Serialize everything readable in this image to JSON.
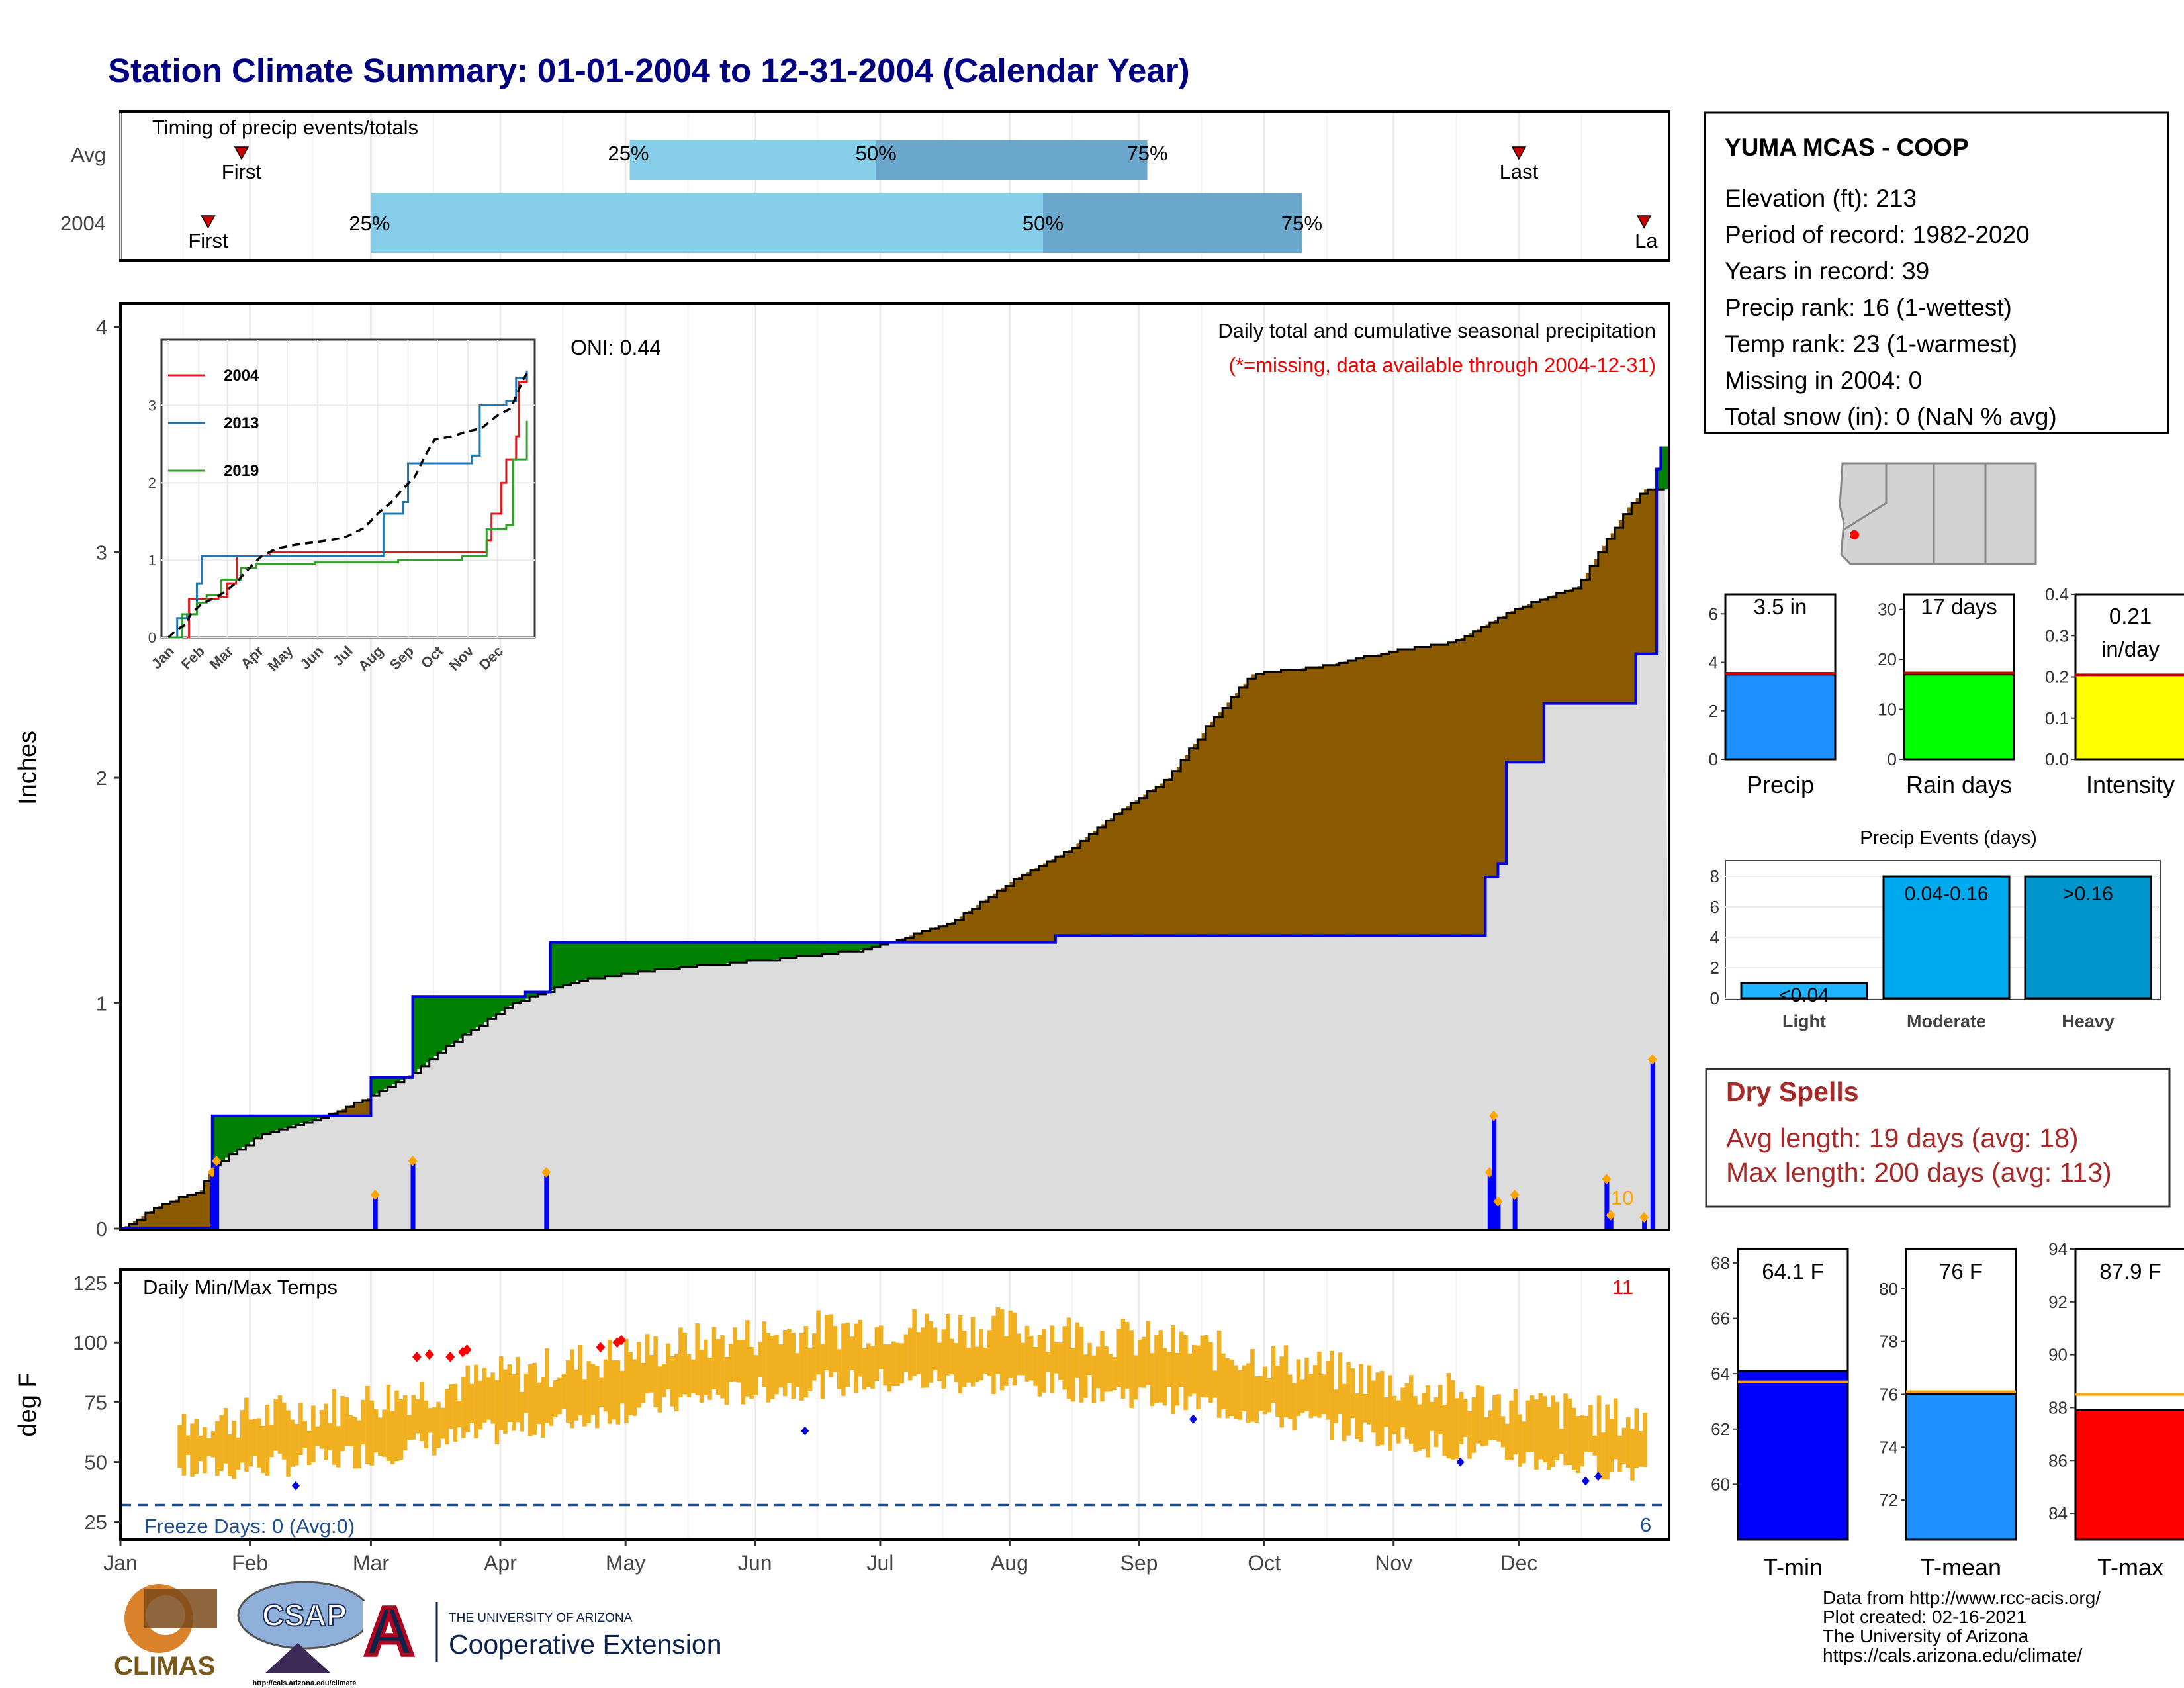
{
  "title": "Station Climate Summary: 01-01-2004 to 12-31-2004 (Calendar Year)",
  "timing": {
    "title": "Timing of precip events/totals",
    "rows": [
      {
        "label": "Avg",
        "first": 30,
        "p25": 123,
        "p50": 182,
        "p75": 247,
        "last": 336
      },
      {
        "label": "2004",
        "first": 22,
        "p25": 61,
        "p50": 222,
        "p75": 284,
        "last": 366
      }
    ],
    "first_label": "First",
    "last_label": "Last",
    "last_label_2004": "La",
    "p25_label": "25%",
    "p50_label": "50%",
    "p75_label": "75%",
    "colors": {
      "light": "#87CEEB",
      "dark": "#6BA6CD",
      "marker": "#cc0000"
    }
  },
  "precip": {
    "ylabel": "Inches",
    "oni": "ONI: 0.44",
    "caption": "Daily total and cumulative seasonal precipitation",
    "missing_note": "(*=missing, data available through 2004-12-31)",
    "ymax_note": "10",
    "yticks": [
      0,
      1,
      2,
      3,
      4
    ]
  },
  "inset": {
    "legend": [
      {
        "name": "2004",
        "color": "#e31a1c"
      },
      {
        "name": "2013",
        "color": "#1f78b4"
      },
      {
        "name": "2019",
        "color": "#33a02c"
      }
    ],
    "yticks": [
      0,
      1,
      2,
      3
    ],
    "months": [
      "Jan",
      "Feb",
      "Mar",
      "Apr",
      "May",
      "Jun",
      "Jul",
      "Aug",
      "Sep",
      "Oct",
      "Nov",
      "Dec"
    ]
  },
  "temps": {
    "ylabel": "deg F",
    "title": "Daily Min/Max Temps",
    "freeze": "Freeze Days: 0 (Avg:0)",
    "max_note": "11",
    "min_note": "6",
    "yticks": [
      25,
      50,
      75,
      100,
      125
    ]
  },
  "xmonths": [
    "Jan",
    "Feb",
    "Mar",
    "Apr",
    "May",
    "Jun",
    "Jul",
    "Aug",
    "Sep",
    "Oct",
    "Nov",
    "Dec"
  ],
  "station": {
    "name": "YUMA MCAS - COOP",
    "lines": [
      "Elevation (ft): 213",
      "Period of record: 1982-2020",
      "Years in record: 39",
      "Precip rank: 16 (1-wettest)",
      "Temp rank: 23 (1-warmest)",
      "Missing in 2004: 0",
      "Total snow (in): 0 (NaN % avg)"
    ]
  },
  "summary_bars": [
    {
      "label": "Precip",
      "value_label": "3.5 in",
      "value": 3.5,
      "avg": 3.55,
      "max": 6.8,
      "ticks": [
        0,
        2,
        4,
        6
      ],
      "color": "#1E90FF"
    },
    {
      "label": "Rain days",
      "value_label": "17 days",
      "value": 17,
      "avg": 17.3,
      "max": 33,
      "ticks": [
        0,
        10,
        20,
        30
      ],
      "color": "#00FF00"
    },
    {
      "label": "Intensity",
      "value_label": "0.21",
      "value_label2": "in/day",
      "value": 0.205,
      "avg": 0.205,
      "max": 0.4,
      "ticks": [
        "0.0",
        "0.1",
        "0.2",
        "0.3",
        "0.4"
      ],
      "color": "#FFFF00"
    }
  ],
  "events": {
    "title": "Precip Events (days)",
    "categories": [
      "Light",
      "Moderate",
      "Heavy"
    ],
    "labels": [
      "<0.04",
      "0.04-0.16",
      ">0.16"
    ],
    "values": [
      1,
      8,
      8
    ],
    "colors": [
      "#1EB4FF",
      "#00AAEE",
      "#0096CC"
    ],
    "yticks": [
      0,
      2,
      4,
      6,
      8
    ]
  },
  "dry_spells": {
    "title": "Dry Spells",
    "avg": "Avg length: 19 days (avg: 18)",
    "max": "Max length: 200 days (avg: 113)",
    "color": "#A52A2A"
  },
  "temp_bars": [
    {
      "label": "T-min",
      "value_label": "64.1 F",
      "value": 64.1,
      "avg": 63.7,
      "min": 58,
      "max": 68.5,
      "ticks": [
        60,
        62,
        64,
        66,
        68
      ],
      "color": "#0000FF"
    },
    {
      "label": "T-mean",
      "value_label": "76 F",
      "value": 76.0,
      "avg": 76.1,
      "min": 70.5,
      "max": 81.5,
      "ticks": [
        72,
        74,
        76,
        78,
        80
      ],
      "color": "#1E90FF"
    },
    {
      "label": "T-max",
      "value_label": "87.9 F",
      "value": 87.9,
      "avg": 88.5,
      "min": 83,
      "max": 94,
      "ticks": [
        84,
        86,
        88,
        90,
        92,
        94
      ],
      "color": "#FF0000"
    }
  ],
  "credits": [
    "Data from http://www.rcc-acis.org/",
    "Plot created: 02-16-2021",
    "The University of Arizona",
    "https://cals.arizona.edu/climate/"
  ],
  "logos": {
    "climas": "CLIMAS",
    "csap": "CSAP",
    "csap_url": "http://cals.arizona.edu/climate",
    "ua_line1": "THE UNIVERSITY OF ARIZONA",
    "ua_line2": "Cooperative Extension",
    "ua_letter": "A"
  },
  "chart_data": {
    "type": "area",
    "title": "Daily total and cumulative seasonal precipitation",
    "ylabel": "Inches",
    "ylim": [
      0,
      4.1
    ],
    "x_unit": "day of year 2004",
    "cumulative_2004": [
      [
        1,
        0
      ],
      [
        23,
        0
      ],
      [
        23,
        0.5
      ],
      [
        51,
        0.5
      ],
      [
        51,
        0.5
      ],
      [
        61,
        0.5
      ],
      [
        61,
        0.67
      ],
      [
        65,
        0.67
      ],
      [
        65,
        0.67
      ],
      [
        71,
        0.67
      ],
      [
        71,
        1.03
      ],
      [
        98,
        1.03
      ],
      [
        98,
        1.05
      ],
      [
        104,
        1.05
      ],
      [
        104,
        1.27
      ],
      [
        225,
        1.27
      ],
      [
        225,
        1.3
      ],
      [
        328,
        1.3
      ],
      [
        328,
        1.56
      ],
      [
        328,
        1.56
      ],
      [
        331,
        1.56
      ],
      [
        331,
        1.62
      ],
      [
        333,
        1.62
      ],
      [
        333,
        2.07
      ],
      [
        342,
        2.07
      ],
      [
        342,
        2.33
      ],
      [
        364,
        2.33
      ],
      [
        364,
        2.55
      ],
      [
        369,
        2.55
      ],
      [
        369,
        3.37
      ],
      [
        369,
        3.37
      ],
      [
        370,
        3.37
      ],
      [
        370,
        3.47
      ]
    ],
    "average_cumulative": [
      [
        1,
        0
      ],
      [
        10,
        0.1
      ],
      [
        20,
        0.17
      ],
      [
        23,
        0.28
      ],
      [
        35,
        0.42
      ],
      [
        50,
        0.5
      ],
      [
        60,
        0.58
      ],
      [
        70,
        0.68
      ],
      [
        80,
        0.82
      ],
      [
        95,
        1.0
      ],
      [
        110,
        1.1
      ],
      [
        130,
        1.15
      ],
      [
        160,
        1.2
      ],
      [
        180,
        1.24
      ],
      [
        200,
        1.36
      ],
      [
        215,
        1.55
      ],
      [
        228,
        1.68
      ],
      [
        240,
        1.85
      ],
      [
        252,
        2.0
      ],
      [
        262,
        2.25
      ],
      [
        272,
        2.46
      ],
      [
        290,
        2.5
      ],
      [
        305,
        2.56
      ],
      [
        320,
        2.6
      ],
      [
        335,
        2.75
      ],
      [
        350,
        2.85
      ],
      [
        355,
        3.0
      ],
      [
        362,
        3.2
      ],
      [
        366,
        3.28
      ]
    ],
    "daily_precip_events": [
      [
        23,
        0.25
      ],
      [
        24,
        0.3
      ],
      [
        62,
        0.15
      ],
      [
        71,
        0.3
      ],
      [
        103,
        0.25
      ],
      [
        329,
        0.25
      ],
      [
        330,
        0.5
      ],
      [
        331,
        0.12
      ],
      [
        335,
        0.15
      ],
      [
        357,
        0.22
      ],
      [
        358,
        0.06
      ],
      [
        368,
        0.75
      ],
      [
        366,
        0.05
      ]
    ],
    "temp_smoothed": {
      "avg_max_start": 67,
      "avg_max_peak": 107,
      "avg_max_end": 66,
      "avg_min_start": 47,
      "avg_min_peak": 84,
      "avg_min_end": 45
    }
  }
}
